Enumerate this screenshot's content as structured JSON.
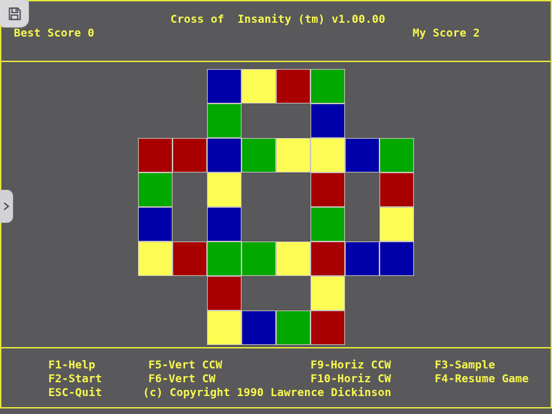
{
  "app": {
    "title": "Cross of  Insanity (tm) v1.00.00"
  },
  "header": {
    "best_score": "Best Score 0",
    "my_score": "My Score 2"
  },
  "menu": {
    "f1": "F1-Help",
    "f2": "F2-Start",
    "esc": "ESC-Quit",
    "f5": "F5-Vert CCW",
    "f6": "F6-Vert CW",
    "f9": "F9-Horiz CCW",
    "f10": "F10-Horiz CW",
    "f3": "F3-Sample",
    "f4": "F4-Resume Game",
    "copyright": "(c) Copyright 1990 Lawrence Dickinson"
  },
  "overlay": {
    "save_icon": "floppy-disk-icon",
    "side_tab_icon": "chevron-right-icon"
  },
  "colors": {
    "background": "#59585a",
    "text_yellow": "#f8f850",
    "line_yellow": "#e6e73c",
    "cell_border": "#c8c4bc",
    "overlay_gray": "#d9d9dc"
  },
  "board": {
    "rows": 8,
    "cols": 8,
    "palette": {
      "R": "#a80000",
      "G": "#00a800",
      "B": "#0000a8",
      "Y": "#fcfc54"
    },
    "cells": [
      {
        "r": 1,
        "c": 3,
        "color": "B"
      },
      {
        "r": 1,
        "c": 4,
        "color": "Y"
      },
      {
        "r": 1,
        "c": 5,
        "color": "R"
      },
      {
        "r": 1,
        "c": 6,
        "color": "G"
      },
      {
        "r": 2,
        "c": 3,
        "color": "G"
      },
      {
        "r": 2,
        "c": 6,
        "color": "B"
      },
      {
        "r": 3,
        "c": 1,
        "color": "R"
      },
      {
        "r": 3,
        "c": 2,
        "color": "R"
      },
      {
        "r": 3,
        "c": 3,
        "color": "B"
      },
      {
        "r": 3,
        "c": 4,
        "color": "G"
      },
      {
        "r": 3,
        "c": 5,
        "color": "Y"
      },
      {
        "r": 3,
        "c": 6,
        "color": "Y"
      },
      {
        "r": 3,
        "c": 7,
        "color": "B"
      },
      {
        "r": 3,
        "c": 8,
        "color": "G"
      },
      {
        "r": 4,
        "c": 1,
        "color": "G"
      },
      {
        "r": 4,
        "c": 3,
        "color": "Y"
      },
      {
        "r": 4,
        "c": 6,
        "color": "R"
      },
      {
        "r": 4,
        "c": 8,
        "color": "R"
      },
      {
        "r": 5,
        "c": 1,
        "color": "B"
      },
      {
        "r": 5,
        "c": 3,
        "color": "B"
      },
      {
        "r": 5,
        "c": 6,
        "color": "G"
      },
      {
        "r": 5,
        "c": 8,
        "color": "Y"
      },
      {
        "r": 6,
        "c": 1,
        "color": "Y"
      },
      {
        "r": 6,
        "c": 2,
        "color": "R"
      },
      {
        "r": 6,
        "c": 3,
        "color": "G"
      },
      {
        "r": 6,
        "c": 4,
        "color": "G"
      },
      {
        "r": 6,
        "c": 5,
        "color": "Y"
      },
      {
        "r": 6,
        "c": 6,
        "color": "R"
      },
      {
        "r": 6,
        "c": 7,
        "color": "B"
      },
      {
        "r": 6,
        "c": 8,
        "color": "B"
      },
      {
        "r": 7,
        "c": 3,
        "color": "R"
      },
      {
        "r": 7,
        "c": 6,
        "color": "Y"
      },
      {
        "r": 8,
        "c": 3,
        "color": "Y"
      },
      {
        "r": 8,
        "c": 4,
        "color": "B"
      },
      {
        "r": 8,
        "c": 5,
        "color": "G"
      },
      {
        "r": 8,
        "c": 6,
        "color": "R"
      }
    ]
  }
}
